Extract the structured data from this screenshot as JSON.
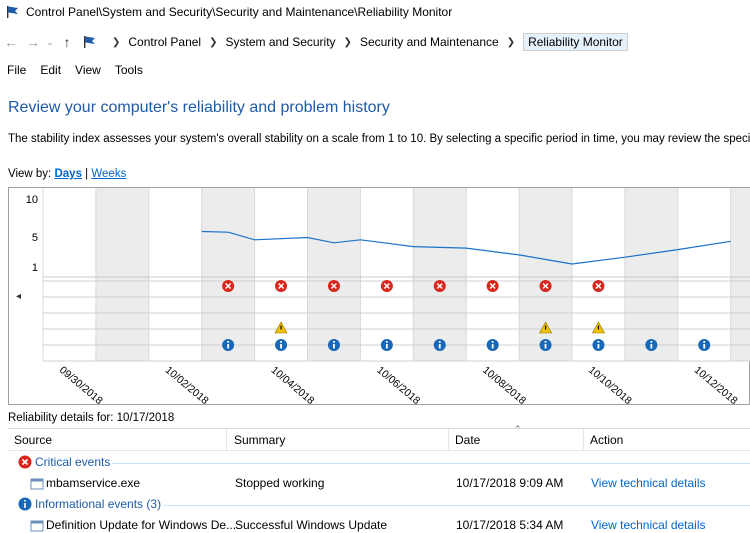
{
  "window": {
    "title": "Control Panel\\System and Security\\Security and Maintenance\\Reliability Monitor"
  },
  "address": {
    "crumbs": [
      "Control Panel",
      "System and Security",
      "Security and Maintenance",
      "Reliability Monitor"
    ]
  },
  "menu": {
    "file": "File",
    "edit": "Edit",
    "view": "View",
    "tools": "Tools"
  },
  "page": {
    "title": "Review your computer's reliability and problem history",
    "description": "The stability index assesses your system's overall stability on a scale from 1 to 10. By selecting a specific period in time, you may review the specific",
    "view_by_label": "View by:",
    "view_days": "Days",
    "view_separator": "|",
    "view_weeks": "Weeks"
  },
  "chart_data": {
    "type": "line",
    "y_ticks": [
      "10",
      "5",
      "1"
    ],
    "ylim": [
      1,
      10
    ],
    "date_labels": [
      "09/30/2018",
      "10/02/2018",
      "10/04/2018",
      "10/06/2018",
      "10/08/2018",
      "10/10/2018",
      "10/12/2018"
    ],
    "stability_index": [
      {
        "x": 3,
        "y": 5.7
      },
      {
        "x": 3.5,
        "y": 5.6
      },
      {
        "x": 4,
        "y": 4.6
      },
      {
        "x": 5,
        "y": 4.9
      },
      {
        "x": 5.5,
        "y": 4.2
      },
      {
        "x": 6,
        "y": 4.6
      },
      {
        "x": 7,
        "y": 3.7
      },
      {
        "x": 8,
        "y": 3.5
      },
      {
        "x": 9,
        "y": 2.6
      },
      {
        "x": 10,
        "y": 1.4
      },
      {
        "x": 11,
        "y": 2.3
      },
      {
        "x": 12,
        "y": 3.3
      },
      {
        "x": 13,
        "y": 4.4
      }
    ],
    "critical_event_columns": [
      3,
      4,
      5,
      6,
      7,
      8,
      9,
      10
    ],
    "warning_event_columns": [
      4,
      9,
      10
    ],
    "info_event_columns": [
      3,
      4,
      5,
      6,
      7,
      8,
      9,
      10,
      11,
      12,
      13
    ],
    "line_color": "#1a73c8",
    "critical_color": "#d9261c",
    "warning_color": "#f2c200",
    "info_color": "#1768b8",
    "grid": true
  },
  "details": {
    "label": "Reliability details for: 10/17/2018",
    "columns": {
      "source": "Source",
      "summary": "Summary",
      "date": "Date",
      "action": "Action"
    },
    "groups": [
      {
        "title": "Critical events",
        "icon": "critical-icon",
        "rows": [
          {
            "source": "mbamservice.exe",
            "summary": "Stopped working",
            "date": "10/17/2018 9:09 AM",
            "action": "View  technical details"
          }
        ]
      },
      {
        "title": "Informational events (3)",
        "icon": "info-icon",
        "rows": [
          {
            "source": "Definition Update for Windows De...",
            "summary": "Successful Windows Update",
            "date": "10/17/2018 5:34 AM",
            "action": "View  technical details"
          }
        ]
      }
    ]
  }
}
